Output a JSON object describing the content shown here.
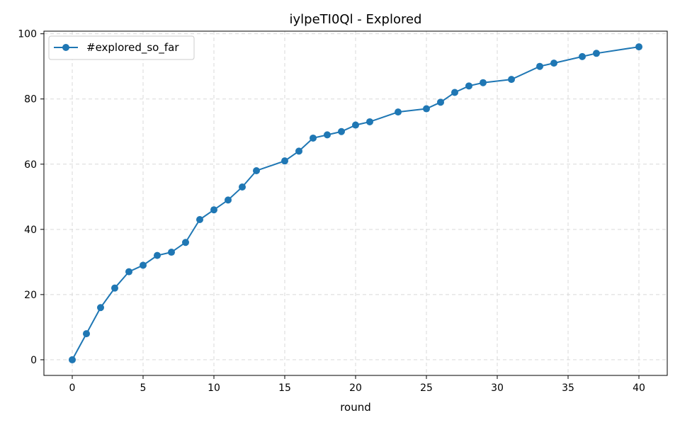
{
  "chart_data": {
    "type": "line",
    "title": "iylpeTI0Ql - Explored",
    "xlabel": "round",
    "ylabel": "",
    "xlim": [
      -2,
      42
    ],
    "ylim": [
      -4.8,
      100.8
    ],
    "xticks": [
      0,
      5,
      10,
      15,
      20,
      25,
      30,
      35,
      40
    ],
    "yticks": [
      0,
      20,
      40,
      60,
      80,
      100
    ],
    "grid": true,
    "legend_position": "top-left",
    "series": [
      {
        "name": "#explored_so_far",
        "color": "#1f77b4",
        "marker": "circle",
        "x": [
          0,
          1,
          2,
          3,
          4,
          5,
          6,
          7,
          8,
          9,
          10,
          11,
          12,
          13,
          15,
          16,
          17,
          18,
          19,
          20,
          21,
          23,
          25,
          26,
          27,
          28,
          29,
          31,
          33,
          34,
          36,
          37,
          40
        ],
        "y": [
          0,
          8,
          16,
          22,
          27,
          29,
          32,
          33,
          36,
          43,
          46,
          49,
          53,
          58,
          61,
          64,
          68,
          69,
          70,
          72,
          73,
          76,
          77,
          79,
          82,
          84,
          85,
          86,
          90,
          91,
          93,
          94,
          96
        ]
      }
    ]
  }
}
